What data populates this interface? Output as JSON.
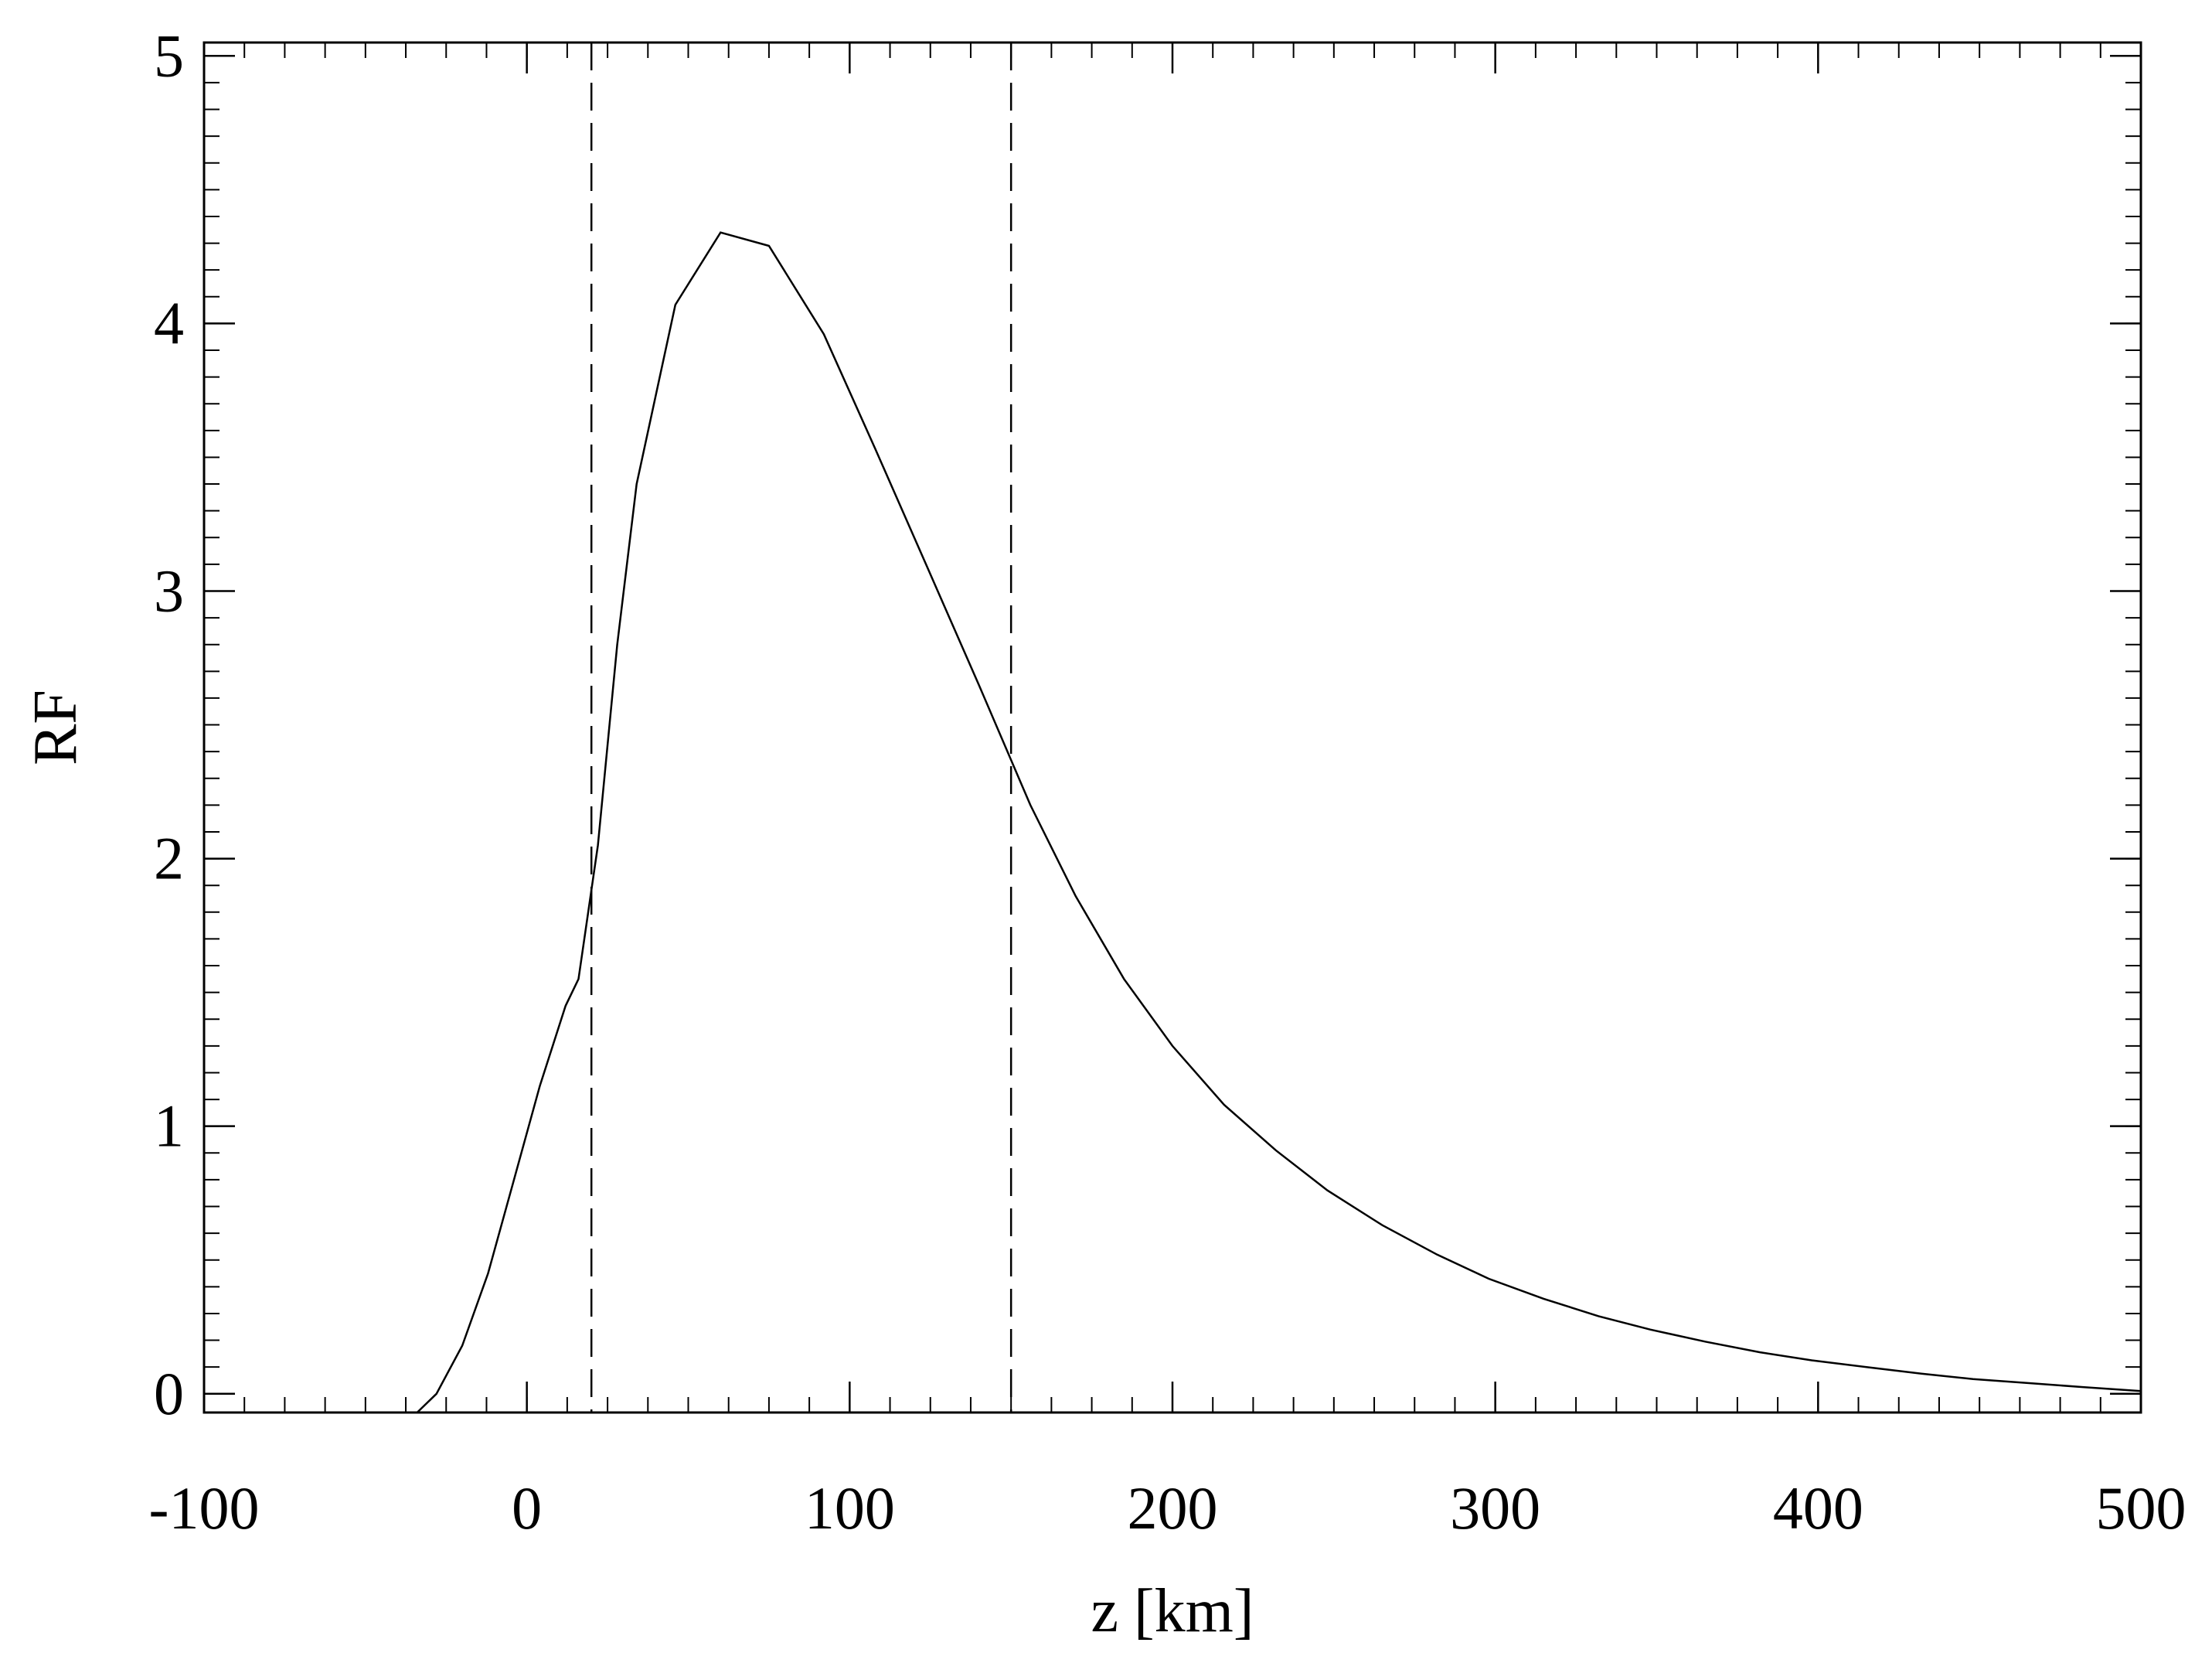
{
  "chart_data": {
    "type": "line",
    "title": "",
    "xlabel": "z [km]",
    "ylabel": "RF",
    "xlim": [
      -100,
      500
    ],
    "ylim": [
      -0.07,
      5.05
    ],
    "xticks": [
      -100,
      0,
      100,
      200,
      300,
      400,
      500
    ],
    "xtick_labels": [
      "-100",
      "0",
      "100",
      "200",
      "300",
      "400",
      "500"
    ],
    "yticks": [
      0,
      1,
      2,
      3,
      4,
      5
    ],
    "ytick_labels": [
      "0",
      "1",
      "2",
      "3",
      "4",
      "5"
    ],
    "x_minor_step": 12.5,
    "y_minor_step": 0.1,
    "grid": false,
    "legend": "none",
    "vertical_dashed_lines": [
      20,
      150
    ],
    "series": [
      {
        "x": [
          -34,
          -28,
          -20,
          -12,
          -4,
          4,
          12,
          16,
          22,
          28,
          34,
          46,
          60,
          75,
          92,
          108,
          124,
          140,
          156,
          170,
          185,
          200,
          216,
          232,
          248,
          265,
          282,
          298,
          315,
          332,
          348,
          365,
          382,
          398,
          415,
          432,
          448,
          465,
          482,
          500
        ],
        "y": [
          -0.07,
          0.0,
          0.18,
          0.45,
          0.8,
          1.15,
          1.45,
          1.55,
          2.05,
          2.8,
          3.4,
          4.07,
          4.34,
          4.29,
          3.96,
          3.53,
          3.09,
          2.65,
          2.2,
          1.86,
          1.55,
          1.3,
          1.08,
          0.91,
          0.76,
          0.63,
          0.52,
          0.43,
          0.355,
          0.29,
          0.24,
          0.195,
          0.155,
          0.125,
          0.1,
          0.075,
          0.055,
          0.04,
          0.025,
          0.01
        ]
      }
    ]
  }
}
